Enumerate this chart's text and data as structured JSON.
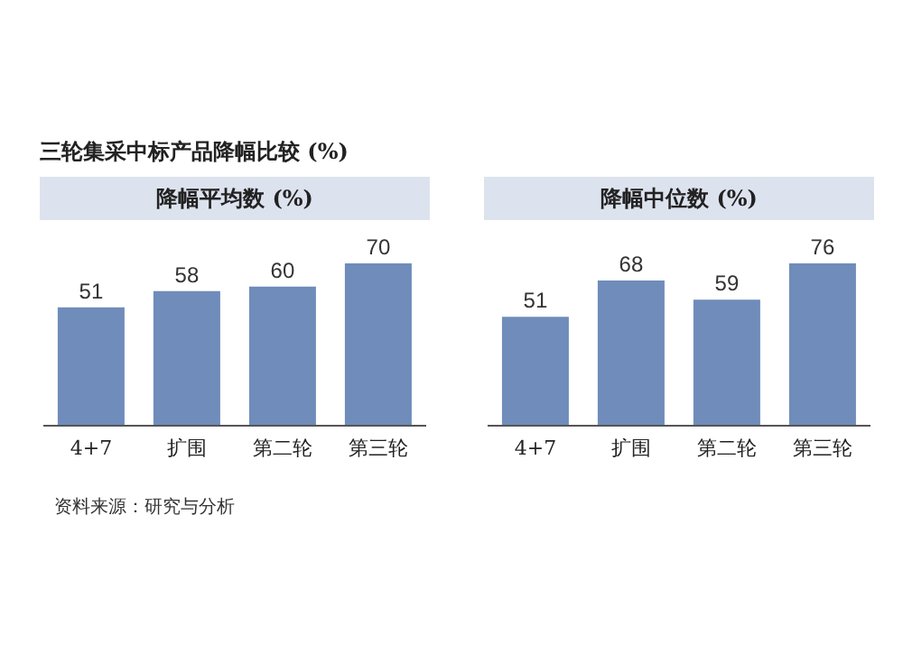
{
  "chart_data": [
    {
      "type": "bar",
      "title": "三轮集采中标产品降幅比较 (%)",
      "subtitle": "降幅平均数 (%)",
      "categories": [
        "4+7",
        "扩围",
        "第二轮",
        "第三轮"
      ],
      "values": [
        51,
        58,
        60,
        70
      ],
      "color": "#6f8cba",
      "data_labels": true,
      "annotations": [
        "资料来源：研究与分析"
      ]
    },
    {
      "type": "bar",
      "title": "降幅中位数 (%)",
      "categories": [
        "4+7",
        "扩围",
        "第二轮",
        "第三轮"
      ],
      "values": [
        51,
        68,
        59,
        76
      ],
      "color": "#6f8cba",
      "data_labels": true
    }
  ]
}
